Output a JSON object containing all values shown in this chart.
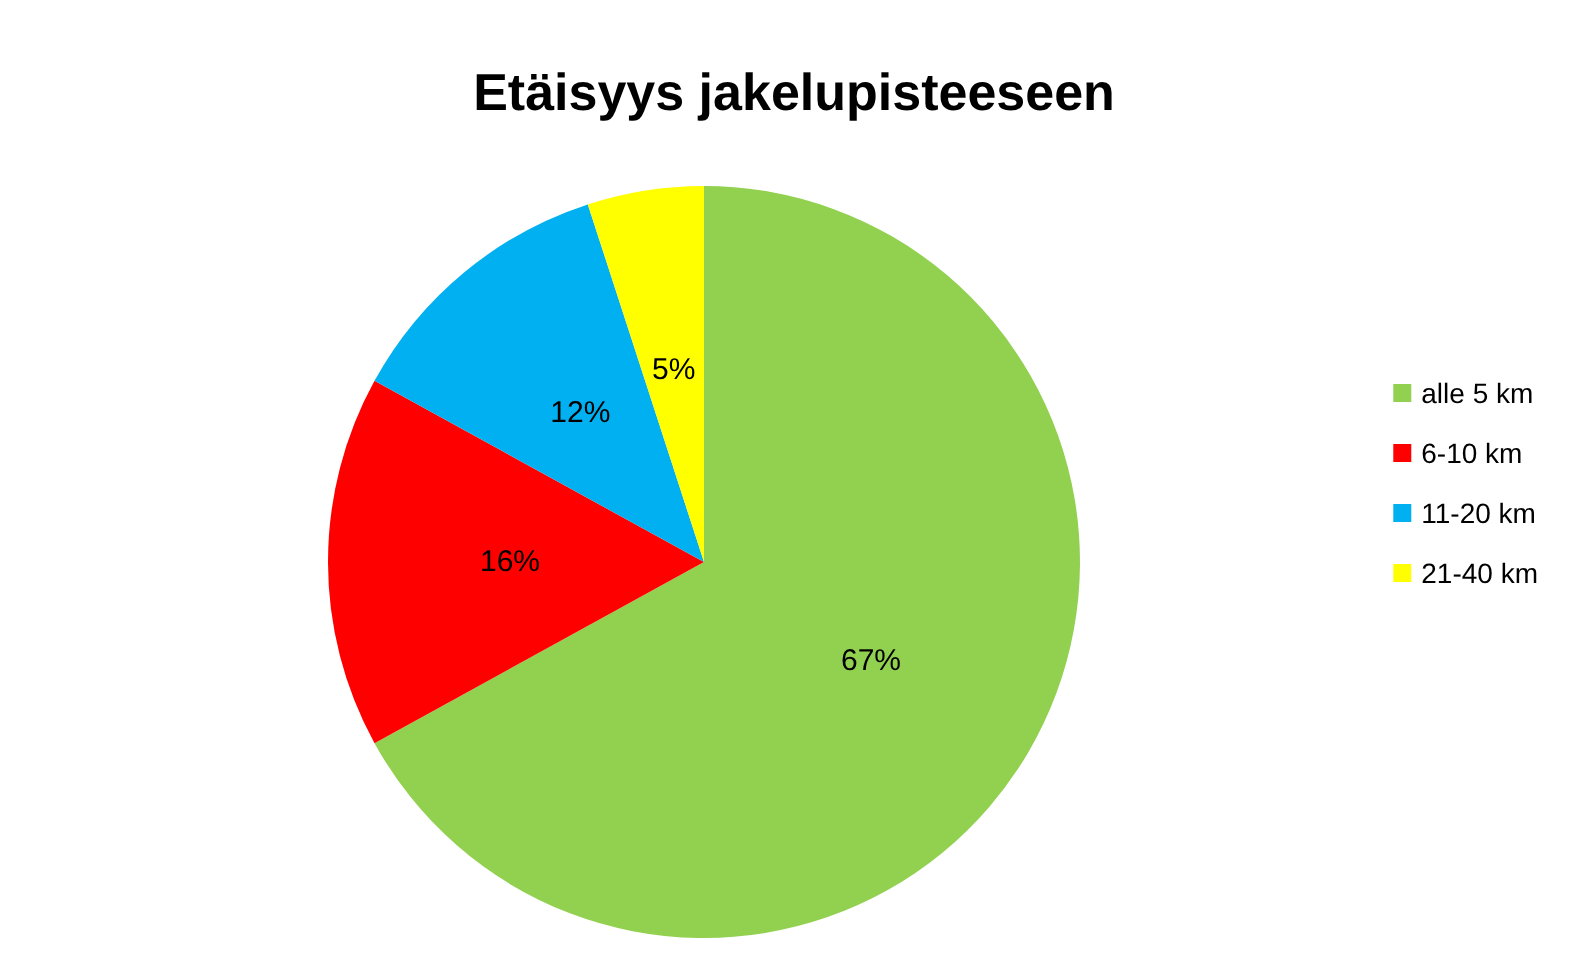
{
  "chart_data": {
    "type": "pie",
    "title": "Etäisyys jakelupisteeseen",
    "categories": [
      "alle 5 km",
      "6-10 km",
      "11-20 km",
      "21-40 km"
    ],
    "values": [
      67,
      16,
      12,
      5
    ],
    "colors": [
      "#92d050",
      "#ff0000",
      "#00b0f0",
      "#ffff00"
    ],
    "value_labels": [
      "67%",
      "16%",
      "12%",
      "5%"
    ],
    "legend": "right"
  }
}
